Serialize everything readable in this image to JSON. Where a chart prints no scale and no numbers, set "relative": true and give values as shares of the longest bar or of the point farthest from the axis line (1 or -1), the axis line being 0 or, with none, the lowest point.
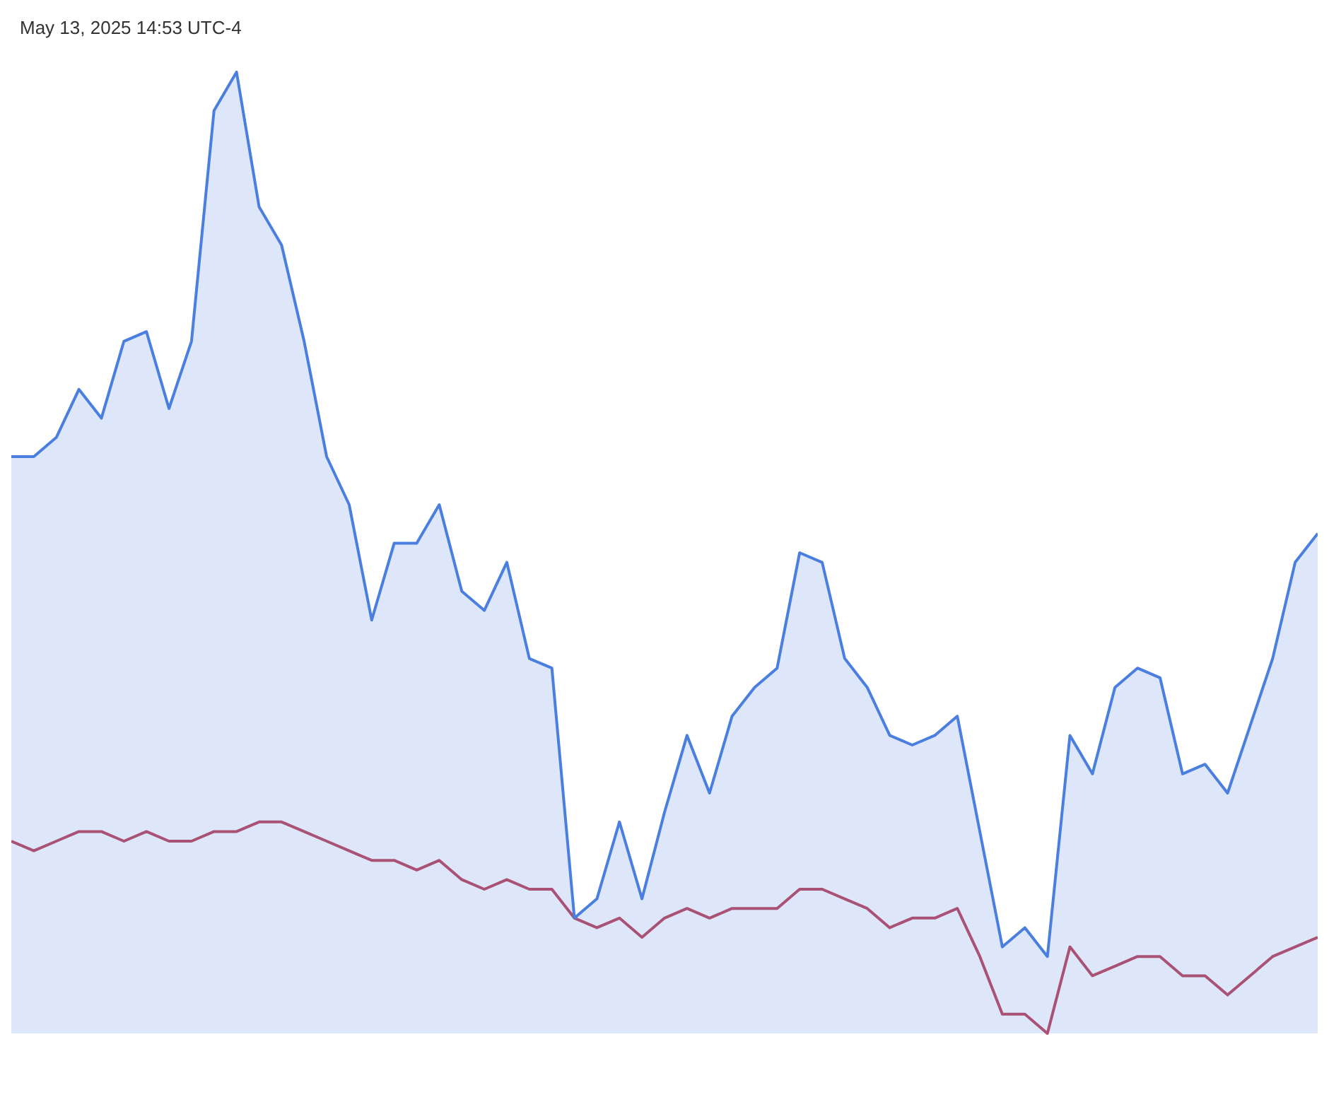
{
  "chart_data": {
    "type": "line",
    "relative": true,
    "annotations": [
      "May 13, 2025 14:53 UTC-4"
    ],
    "categories": [
      null,
      null,
      null,
      null,
      null,
      null,
      null,
      null,
      null,
      null,
      null,
      null,
      null,
      null,
      null,
      null,
      null,
      null,
      null,
      null,
      null,
      null,
      null,
      null,
      null,
      null,
      null,
      null,
      null,
      null,
      null,
      null,
      null,
      null,
      null,
      null,
      null,
      null,
      null,
      null,
      null,
      null,
      null,
      null,
      null,
      null,
      null,
      null,
      null,
      null,
      null,
      null,
      null,
      null,
      null,
      null,
      null,
      null,
      null
    ],
    "series": [
      {
        "type": "area",
        "color": "#4a7fe0",
        "values": [
          0.6,
          0.6,
          0.62,
          0.67,
          0.64,
          0.72,
          0.73,
          0.65,
          0.72,
          0.96,
          1,
          0.86,
          0.82,
          0.72,
          0.6,
          0.55,
          0.43,
          0.51,
          0.51,
          0.55,
          0.46,
          0.44,
          0.49,
          0.39,
          0.38,
          0.12,
          0.14,
          0.22,
          0.14,
          0.23,
          0.31,
          0.25,
          0.33,
          0.36,
          0.38,
          0.5,
          0.49,
          0.39,
          0.36,
          0.31,
          0.3,
          0.31,
          0.33,
          0.21,
          0.09,
          0.11,
          0.08,
          0.31,
          0.27,
          0.36,
          0.38,
          0.37,
          0.27,
          0.28,
          0.25,
          0.32,
          0.39,
          0.49,
          0.52
        ]
      },
      {
        "type": "line",
        "color": "#c0475e",
        "values": [
          0.2,
          0.19,
          0.2,
          0.21,
          0.21,
          0.2,
          0.21,
          0.2,
          0.2,
          0.21,
          0.21,
          0.22,
          0.22,
          0.21,
          0.2,
          0.19,
          0.18,
          0.18,
          0.17,
          0.18,
          0.16,
          0.15,
          0.16,
          0.15,
          0.15,
          0.12,
          0.11,
          0.12,
          0.1,
          0.12,
          0.13,
          0.12,
          0.13,
          0.13,
          0.13,
          0.15,
          0.15,
          0.14,
          0.13,
          0.11,
          0.12,
          0.12,
          0.13,
          0.08,
          0.02,
          0.02,
          0,
          0.09,
          0.06,
          0.07,
          0.08,
          0.08,
          0.06,
          0.06,
          0.04,
          0.06,
          0.08,
          0.09,
          0.1
        ]
      }
    ]
  }
}
